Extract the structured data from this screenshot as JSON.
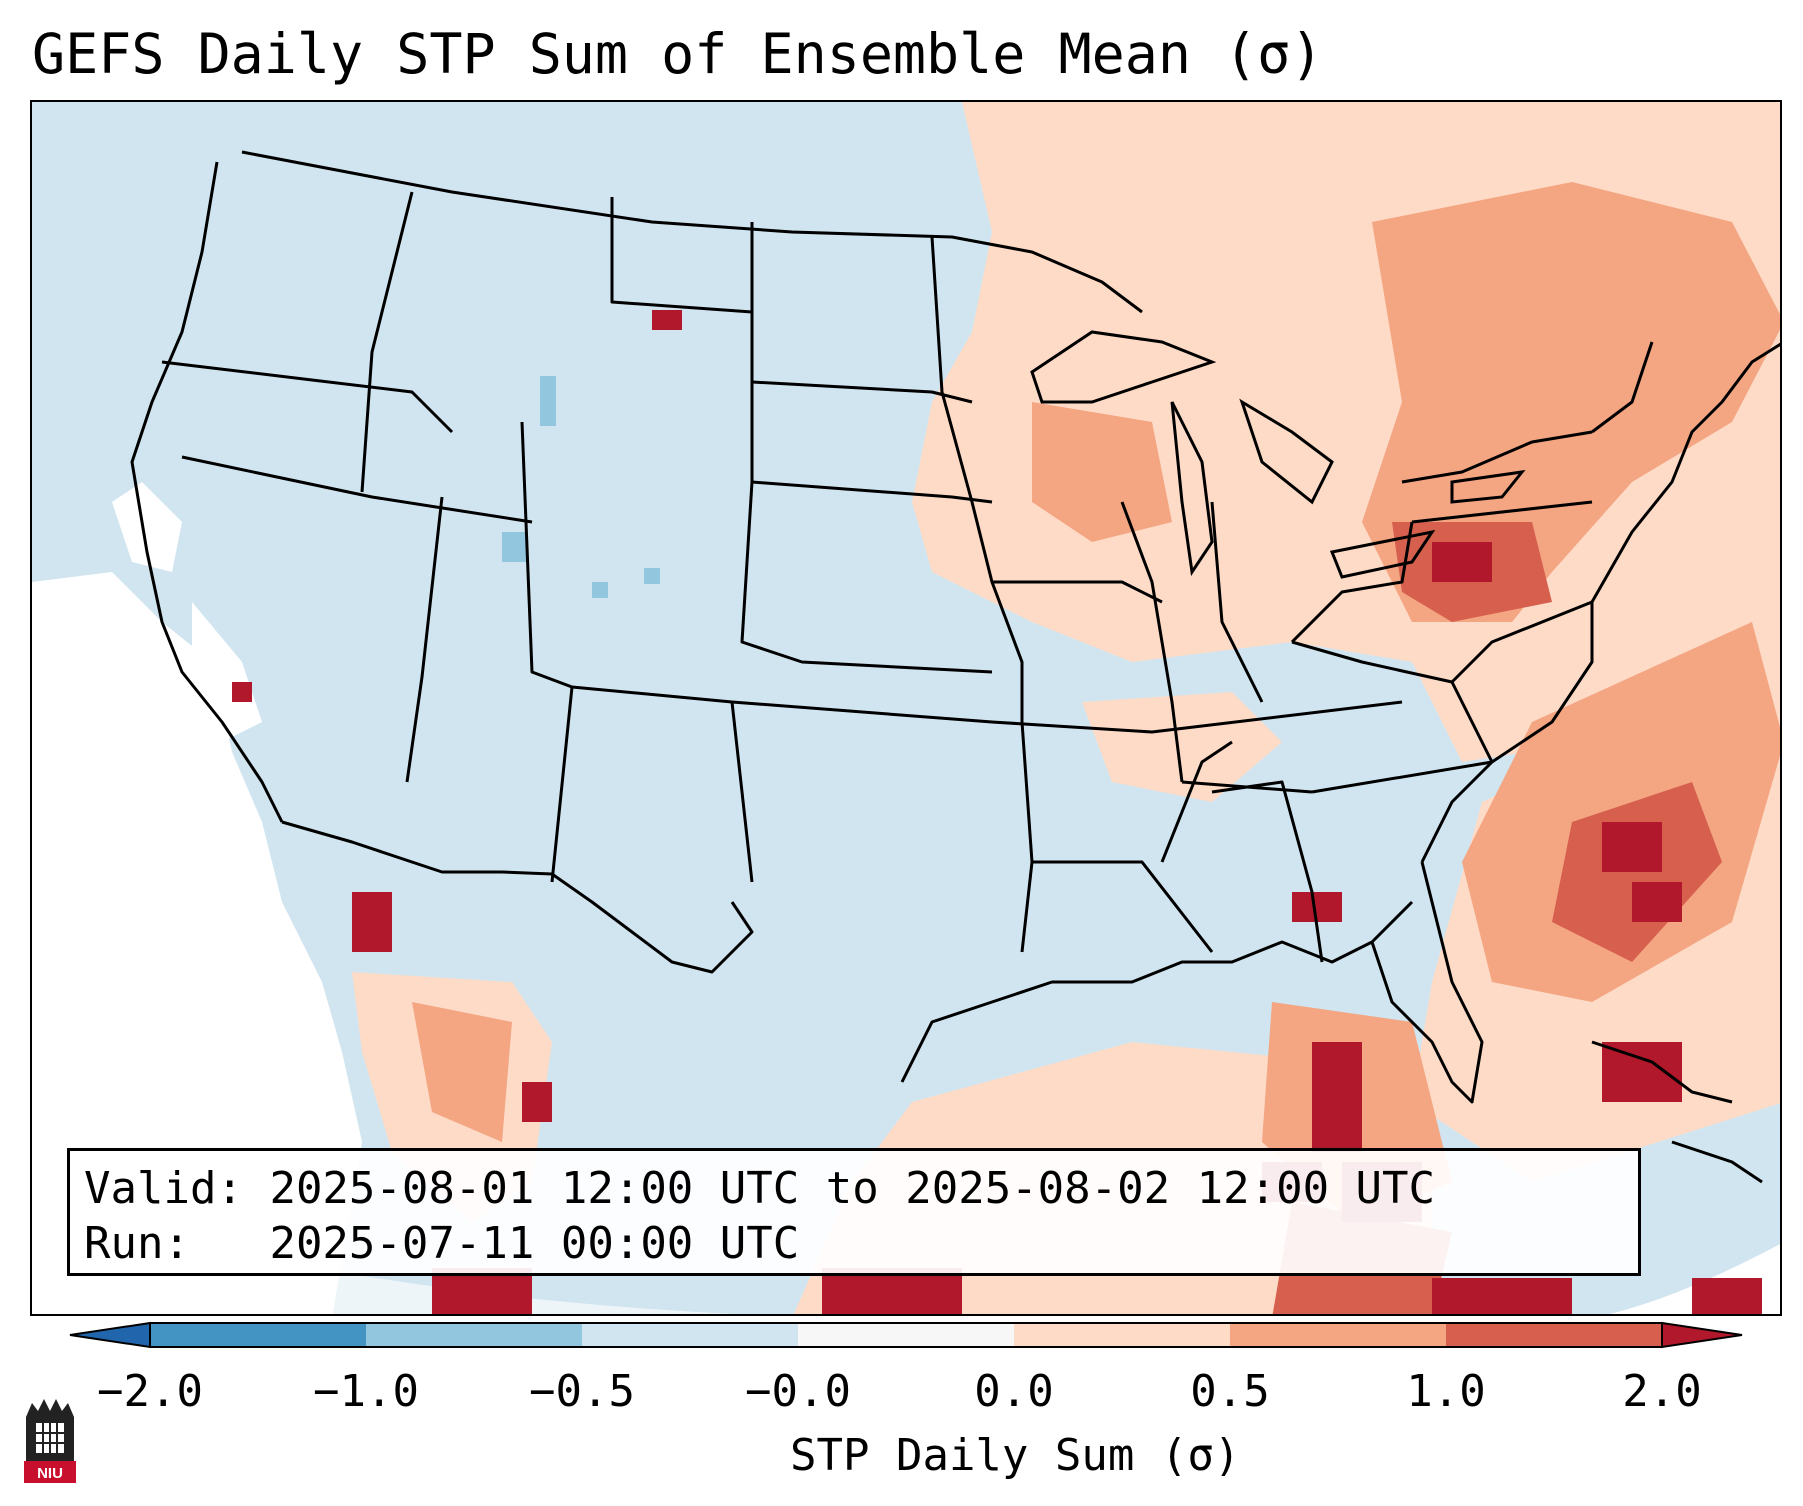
{
  "title": "GEFS Daily STP Sum of Ensemble Mean (σ)",
  "info": {
    "valid_label": "Valid:",
    "valid_text": "2025-08-01 12:00 UTC to 2025-08-02 12:00 UTC",
    "run_label": "Run:",
    "run_text": "2025-07-11 00:00 UTC"
  },
  "colorbar": {
    "label": "STP Daily Sum (σ)",
    "ticks": [
      "−2.0",
      "−1.0",
      "−0.5",
      "−0.0",
      "0.0",
      "0.5",
      "1.0",
      "2.0"
    ],
    "colors": [
      "#2166ac",
      "#4393c3",
      "#92c5de",
      "#d1e5f0",
      "#f7f7f7",
      "#fddbc7",
      "#f4a582",
      "#d6604d",
      "#b2182b"
    ]
  },
  "map": {
    "background_color": "#d1e5f0",
    "region": "Contiguous United States",
    "projection": "Lambert Conformal"
  },
  "logo": {
    "text": "NIU"
  }
}
